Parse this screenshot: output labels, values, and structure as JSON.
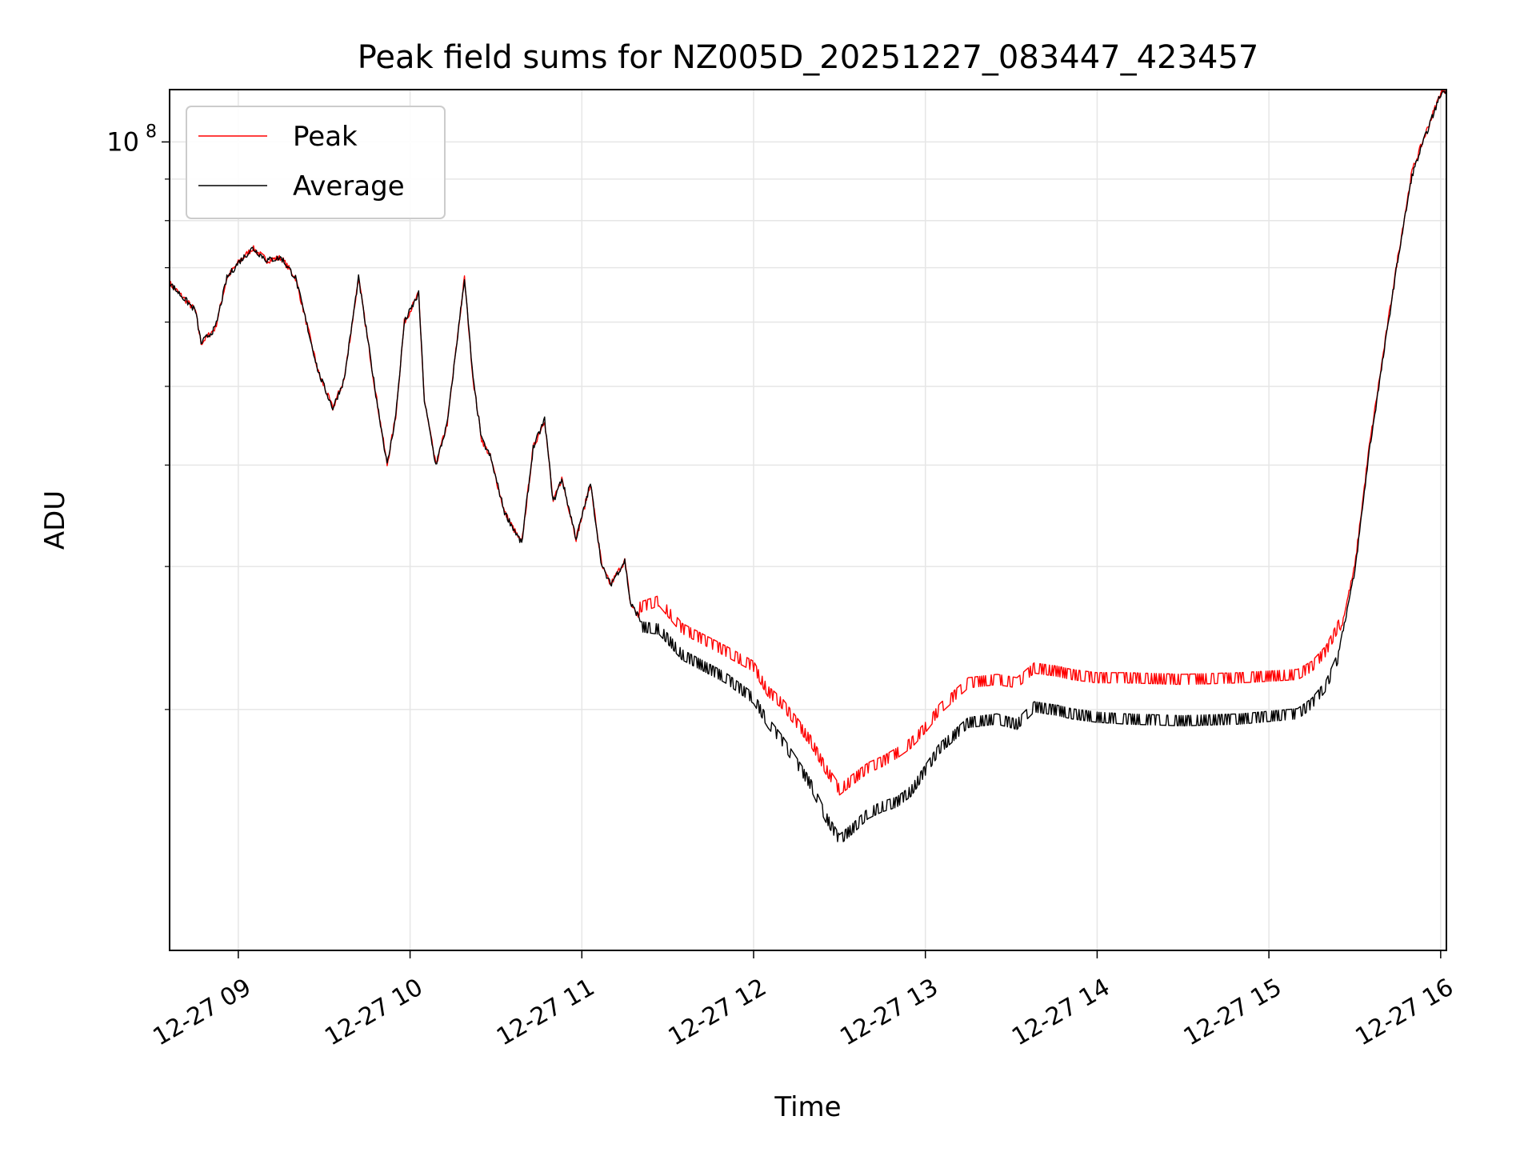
{
  "chart_data": {
    "type": "line",
    "title": "Peak field sums for NZ005D_20251227_083447_423457",
    "xlabel": "Time",
    "ylabel": "ADU",
    "yscale": "log",
    "xlim": [
      "2025-12-27 08:36",
      "2025-12-27 16:02"
    ],
    "ylim": [
      10100000,
      116000000
    ],
    "grid": true,
    "legend_position": "upper-left",
    "x_tick_labels": [
      "12-27 09",
      "12-27 10",
      "12-27 11",
      "12-27 12",
      "12-27 13",
      "12-27 14",
      "12-27 15",
      "12-27 16"
    ],
    "x_ticks": [
      "2025-12-27 09:00",
      "2025-12-27 10:00",
      "2025-12-27 11:00",
      "2025-12-27 12:00",
      "2025-12-27 13:00",
      "2025-12-27 14:00",
      "2025-12-27 15:00",
      "2025-12-27 16:00"
    ],
    "y_major_ticks": [
      {
        "value": 100000000,
        "base": "10",
        "exponent": "8"
      }
    ],
    "y_minor_ticks": [
      20000000,
      30000000,
      40000000,
      50000000,
      60000000,
      70000000,
      80000000,
      90000000
    ],
    "x": [
      "08:36",
      "08:45",
      "08:47",
      "08:52",
      "08:56",
      "09:00",
      "09:05",
      "09:10",
      "09:15",
      "09:20",
      "09:28",
      "09:33",
      "09:37",
      "09:42",
      "09:48",
      "09:52",
      "09:55",
      "09:58",
      "10:03",
      "10:05",
      "10:09",
      "10:13",
      "10:19",
      "10:22",
      "10:25",
      "10:28",
      "10:33",
      "10:39",
      "10:43",
      "10:47",
      "10:50",
      "10:53",
      "10:58",
      "11:00",
      "11:03",
      "11:07",
      "11:10",
      "11:15",
      "11:17",
      "11:20",
      "11:27",
      "11:35",
      "11:50",
      "12:00",
      "12:05",
      "12:10",
      "12:20",
      "12:25",
      "12:30",
      "12:35",
      "12:40",
      "12:45",
      "12:50",
      "12:55",
      "13:00",
      "13:05",
      "13:15",
      "13:25",
      "13:32",
      "13:38",
      "13:46",
      "13:51",
      "14:00",
      "14:10",
      "14:30",
      "14:50",
      "15:10",
      "15:15",
      "15:20",
      "15:25",
      "15:30",
      "15:35",
      "15:40",
      "15:45",
      "15:50",
      "15:55",
      "16:00",
      "16:02"
    ],
    "series": [
      {
        "name": "Peak",
        "color": "#ff0000",
        "values": [
          67000000,
          62000000,
          56500000,
          59000000,
          68000000,
          71000000,
          74000000,
          71500000,
          72000000,
          68000000,
          52000000,
          47000000,
          51000000,
          68000000,
          49000000,
          40000000,
          46000000,
          60000000,
          65000000,
          48000000,
          40000000,
          45000000,
          68000000,
          51000000,
          43000000,
          41000000,
          35000000,
          32000000,
          42000000,
          45500000,
          36000000,
          38500000,
          32500000,
          34500000,
          38000000,
          30000000,
          28500000,
          30500000,
          27000000,
          26000000,
          26500000,
          24500000,
          23000000,
          22000000,
          20500000,
          19800000,
          17800000,
          16500000,
          15500000,
          16000000,
          16500000,
          16800000,
          17200000,
          17700000,
          18500000,
          19500000,
          21000000,
          21200000,
          21000000,
          21900000,
          21700000,
          21500000,
          21300000,
          21300000,
          21200000,
          21300000,
          21500000,
          22000000,
          23000000,
          25000000,
          30000000,
          42000000,
          55000000,
          72000000,
          92000000,
          103000000,
          115000000,
          116000000
        ]
      },
      {
        "name": "Average",
        "color": "#000000",
        "values": [
          67000000,
          62000000,
          56500000,
          59000000,
          68000000,
          71000000,
          74000000,
          71500000,
          72000000,
          68000000,
          52000000,
          47000000,
          51000000,
          68000000,
          49000000,
          40000000,
          46000000,
          60000000,
          65000000,
          48000000,
          40000000,
          45000000,
          68000000,
          51000000,
          43000000,
          41000000,
          35000000,
          32000000,
          42000000,
          45500000,
          36000000,
          38500000,
          32500000,
          34500000,
          38000000,
          30000000,
          28500000,
          30500000,
          27000000,
          26000000,
          25800000,
          24000000,
          22500000,
          21200000,
          19800000,
          18800000,
          16600000,
          15200000,
          14200000,
          14700000,
          15300000,
          15600000,
          15800000,
          16300000,
          17300000,
          18400000,
          19800000,
          20000000,
          19700000,
          20700000,
          20500000,
          20300000,
          20100000,
          20000000,
          19900000,
          20000000,
          20300000,
          20900000,
          22000000,
          24200000,
          29500000,
          41500000,
          54500000,
          71500000,
          91000000,
          102500000,
          114500000,
          116000000
        ]
      }
    ]
  }
}
